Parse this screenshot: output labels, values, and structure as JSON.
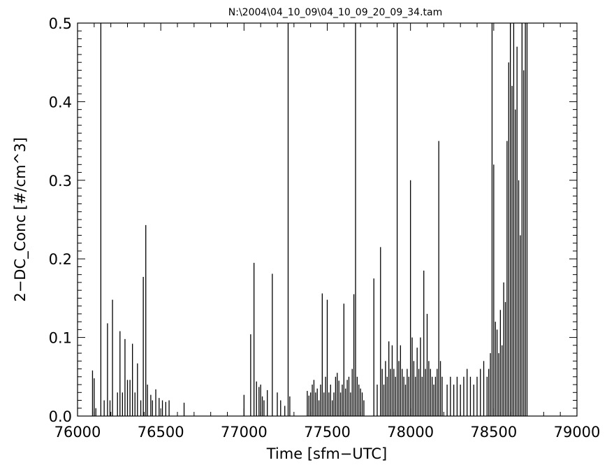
{
  "chart_data": {
    "type": "bar",
    "title": "N:\\2004\\04_10_09\\04_10_09_20_09_34.tam",
    "xlabel": "Time [sfm−UTC]",
    "ylabel": "2−DC_Conc [#/cm^3]",
    "xlim": [
      76000,
      79000
    ],
    "ylim": [
      0.0,
      0.5
    ],
    "grid": false,
    "x_ticks": [
      76000,
      76500,
      77000,
      77500,
      78000,
      78500,
      79000
    ],
    "x_tick_labels": [
      "76000",
      "76500",
      "77000",
      "77500",
      "78000",
      "78500",
      "79000"
    ],
    "y_ticks": [
      0.0,
      0.1,
      0.2,
      0.3,
      0.4,
      0.5
    ],
    "y_tick_labels": [
      "0.0",
      "0.1",
      "0.2",
      "0.3",
      "0.4",
      "0.5"
    ],
    "x": [
      76090,
      76100,
      76110,
      76140,
      76160,
      76180,
      76195,
      76210,
      76240,
      76255,
      76270,
      76285,
      76300,
      76315,
      76330,
      76345,
      76360,
      76380,
      76395,
      76410,
      76420,
      76440,
      76450,
      76470,
      76490,
      76510,
      76530,
      76550,
      76640,
      77000,
      77040,
      77060,
      77075,
      77090,
      77100,
      77110,
      77120,
      77140,
      77170,
      77200,
      77220,
      77245,
      77265,
      77275,
      77380,
      77390,
      77400,
      77410,
      77420,
      77430,
      77440,
      77450,
      77460,
      77470,
      77480,
      77490,
      77500,
      77510,
      77520,
      77530,
      77540,
      77550,
      77560,
      77570,
      77580,
      77590,
      77600,
      77610,
      77620,
      77630,
      77640,
      77650,
      77660,
      77670,
      77680,
      77690,
      77700,
      77710,
      77720,
      77780,
      77800,
      77820,
      77830,
      77840,
      77850,
      77860,
      77870,
      77880,
      77890,
      77900,
      77910,
      77920,
      77930,
      77940,
      77950,
      77960,
      77970,
      77980,
      77990,
      78000,
      78010,
      78020,
      78030,
      78040,
      78050,
      78060,
      78070,
      78080,
      78090,
      78100,
      78110,
      78120,
      78130,
      78140,
      78150,
      78160,
      78170,
      78180,
      78190,
      78220,
      78240,
      78260,
      78280,
      78300,
      78320,
      78340,
      78360,
      78380,
      78400,
      78420,
      78440,
      78460,
      78470,
      78480,
      78490,
      78500,
      78510,
      78520,
      78530,
      78540,
      78550,
      78560,
      78570,
      78580,
      78590,
      78600,
      78610,
      78620,
      78630,
      78640,
      78650,
      78660,
      78670,
      78680,
      78690,
      78700
    ],
    "values": [
      0.058,
      0.048,
      0.01,
      0.5,
      0.02,
      0.118,
      0.02,
      0.148,
      0.03,
      0.108,
      0.03,
      0.098,
      0.046,
      0.046,
      0.092,
      0.03,
      0.067,
      0.02,
      0.177,
      0.243,
      0.04,
      0.027,
      0.02,
      0.034,
      0.023,
      0.02,
      0.018,
      0.02,
      0.017,
      0.027,
      0.104,
      0.195,
      0.044,
      0.037,
      0.04,
      0.025,
      0.02,
      0.033,
      0.181,
      0.03,
      0.02,
      0.013,
      0.5,
      0.025,
      0.032,
      0.026,
      0.03,
      0.04,
      0.046,
      0.03,
      0.035,
      0.02,
      0.04,
      0.156,
      0.03,
      0.05,
      0.148,
      0.03,
      0.04,
      0.02,
      0.03,
      0.05,
      0.055,
      0.045,
      0.03,
      0.04,
      0.143,
      0.035,
      0.046,
      0.05,
      0.03,
      0.06,
      0.155,
      0.5,
      0.05,
      0.04,
      0.035,
      0.03,
      0.02,
      0.175,
      0.04,
      0.215,
      0.06,
      0.04,
      0.07,
      0.05,
      0.095,
      0.06,
      0.09,
      0.06,
      0.05,
      0.5,
      0.07,
      0.09,
      0.06,
      0.05,
      0.04,
      0.06,
      0.05,
      0.3,
      0.1,
      0.07,
      0.05,
      0.087,
      0.06,
      0.1,
      0.05,
      0.185,
      0.06,
      0.13,
      0.07,
      0.06,
      0.05,
      0.04,
      0.05,
      0.06,
      0.35,
      0.07,
      0.05,
      0.04,
      0.05,
      0.04,
      0.05,
      0.04,
      0.05,
      0.06,
      0.05,
      0.04,
      0.05,
      0.06,
      0.07,
      0.05,
      0.06,
      0.08,
      0.5,
      0.32,
      0.12,
      0.11,
      0.08,
      0.135,
      0.09,
      0.17,
      0.145,
      0.35,
      0.45,
      0.5,
      0.42,
      0.5,
      0.39,
      0.47,
      0.3,
      0.23,
      0.5,
      0.44,
      0.5,
      0.5
    ]
  }
}
